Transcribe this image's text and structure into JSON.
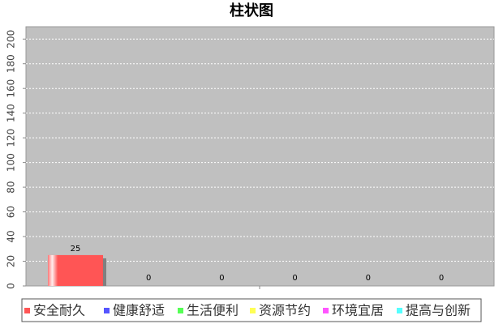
{
  "chart_data": {
    "type": "bar",
    "title": "柱状图",
    "categories": [
      null
    ],
    "series": [
      {
        "name": "安全耐久",
        "color": "#ff5555",
        "values": [
          25
        ]
      },
      {
        "name": "健康舒适",
        "color": "#5555ff",
        "values": [
          0
        ]
      },
      {
        "name": "生活便利",
        "color": "#55ff55",
        "values": [
          0
        ]
      },
      {
        "name": "资源节约",
        "color": "#ffff55",
        "values": [
          0
        ]
      },
      {
        "name": "环境宜居",
        "color": "#ff55ff",
        "values": [
          0
        ]
      },
      {
        "name": "提高与创新",
        "color": "#55ffff",
        "values": [
          0
        ]
      }
    ],
    "ylim": [
      0,
      210
    ],
    "yticks": [
      0,
      20,
      40,
      60,
      80,
      100,
      120,
      140,
      160,
      180,
      200
    ],
    "grid": true,
    "legend": "bottom"
  }
}
